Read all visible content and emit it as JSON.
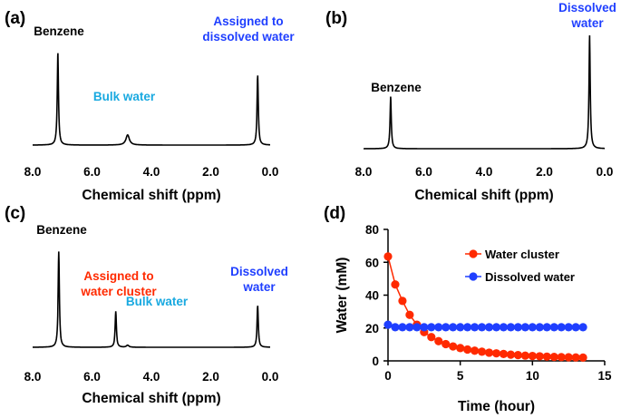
{
  "colors": {
    "black": "#000000",
    "red": "#ff2a00",
    "blue": "#1f3fff",
    "cyan": "#19a9e0"
  },
  "chart_data": [
    {
      "panel": "(a)",
      "type": "line",
      "subtype": "nmr-spectrum",
      "xlabel": "Chemical shift (ppm)",
      "xlim": [
        8.0,
        0.0
      ],
      "x_reversed": true,
      "xticks": [
        "8.0",
        "6.0",
        "4.0",
        "2.0",
        "0.0"
      ],
      "peaks": [
        {
          "ppm": 7.15,
          "height": 0.92,
          "width": 0.025
        },
        {
          "ppm": 4.8,
          "height": 0.1,
          "width": 0.07
        },
        {
          "ppm": 0.42,
          "height": 0.69,
          "width": 0.025
        }
      ],
      "annotations": [
        {
          "lines": [
            "Benzene"
          ],
          "color": "black"
        },
        {
          "lines": [
            "Bulk water"
          ],
          "color": "cyan"
        },
        {
          "lines": [
            "Assigned to",
            "dissolved  water"
          ],
          "color": "blue"
        }
      ]
    },
    {
      "panel": "(b)",
      "type": "line",
      "subtype": "nmr-spectrum",
      "xlabel": "Chemical shift (ppm)",
      "xlim": [
        8.0,
        0.0
      ],
      "x_reversed": true,
      "xticks": [
        "8.0",
        "6.0",
        "4.0",
        "2.0",
        "0.0"
      ],
      "peaks": [
        {
          "ppm": 7.1,
          "height": 0.46,
          "width": 0.025
        },
        {
          "ppm": 0.5,
          "height": 1.0,
          "width": 0.025
        }
      ],
      "annotations": [
        {
          "lines": [
            "Benzene"
          ],
          "color": "black"
        },
        {
          "lines": [
            "Dissolved",
            "water"
          ],
          "color": "blue"
        }
      ]
    },
    {
      "panel": "(c)",
      "type": "line",
      "subtype": "nmr-spectrum",
      "xlabel": "Chemical shift (ppm)",
      "xlim": [
        8.0,
        0.0
      ],
      "x_reversed": true,
      "xticks": [
        "8.0",
        "6.0",
        "4.0",
        "2.0",
        "0.0"
      ],
      "peaks": [
        {
          "ppm": 7.12,
          "height": 0.96,
          "width": 0.025
        },
        {
          "ppm": 5.2,
          "height": 0.36,
          "width": 0.025
        },
        {
          "ppm": 4.8,
          "height": 0.02,
          "width": 0.05
        },
        {
          "ppm": 0.42,
          "height": 0.42,
          "width": 0.025
        }
      ],
      "annotations": [
        {
          "lines": [
            "Benzene"
          ],
          "color": "black"
        },
        {
          "lines": [
            "Assigned to",
            "water cluster"
          ],
          "color": "red"
        },
        {
          "lines": [
            "Bulk water"
          ],
          "color": "cyan"
        },
        {
          "lines": [
            "Dissolved",
            "water"
          ],
          "color": "blue"
        }
      ]
    },
    {
      "panel": "(d)",
      "type": "line",
      "xlabel": "Time (hour)",
      "ylabel": "Water (mM)",
      "xlim": [
        0,
        15
      ],
      "ylim": [
        0,
        80
      ],
      "xticks": [
        "0",
        "5",
        "10",
        "15"
      ],
      "yticks": [
        "0",
        "20",
        "40",
        "60",
        "80"
      ],
      "legend_position": "top-right",
      "series": [
        {
          "name": "Water cluster",
          "color": "red",
          "x": [
            0,
            0.5,
            1.0,
            1.5,
            2.0,
            2.5,
            3.0,
            3.5,
            4.0,
            4.5,
            5.0,
            5.5,
            6.0,
            6.5,
            7.0,
            7.5,
            8.0,
            8.5,
            9.0,
            9.5,
            10.0,
            10.5,
            11.0,
            11.5,
            12.0,
            12.5,
            13.0,
            13.5
          ],
          "y": [
            63.5,
            46.5,
            36.5,
            28.0,
            22.0,
            17.5,
            14.5,
            12.0,
            10.2,
            8.8,
            7.8,
            6.9,
            6.2,
            5.6,
            5.0,
            4.6,
            4.2,
            3.8,
            3.5,
            3.2,
            3.0,
            2.8,
            2.6,
            2.4,
            2.3,
            2.2,
            2.1,
            2.0
          ]
        },
        {
          "name": "Dissolved water",
          "color": "blue",
          "x": [
            0,
            0.5,
            1.0,
            1.5,
            2.0,
            2.5,
            3.0,
            3.5,
            4.0,
            4.5,
            5.0,
            5.5,
            6.0,
            6.5,
            7.0,
            7.5,
            8.0,
            8.5,
            9.0,
            9.5,
            10.0,
            10.5,
            11.0,
            11.5,
            12.0,
            12.5,
            13.0,
            13.5
          ],
          "y": [
            22,
            20.5,
            20.5,
            20.5,
            20.5,
            20.5,
            20.5,
            20.5,
            20.5,
            20.5,
            20.5,
            20.5,
            20.5,
            20.5,
            20.5,
            20.5,
            20.5,
            20.5,
            20.5,
            20.5,
            20.5,
            20.5,
            20.5,
            20.5,
            20.5,
            20.5,
            20.5,
            20.5
          ]
        }
      ]
    }
  ]
}
